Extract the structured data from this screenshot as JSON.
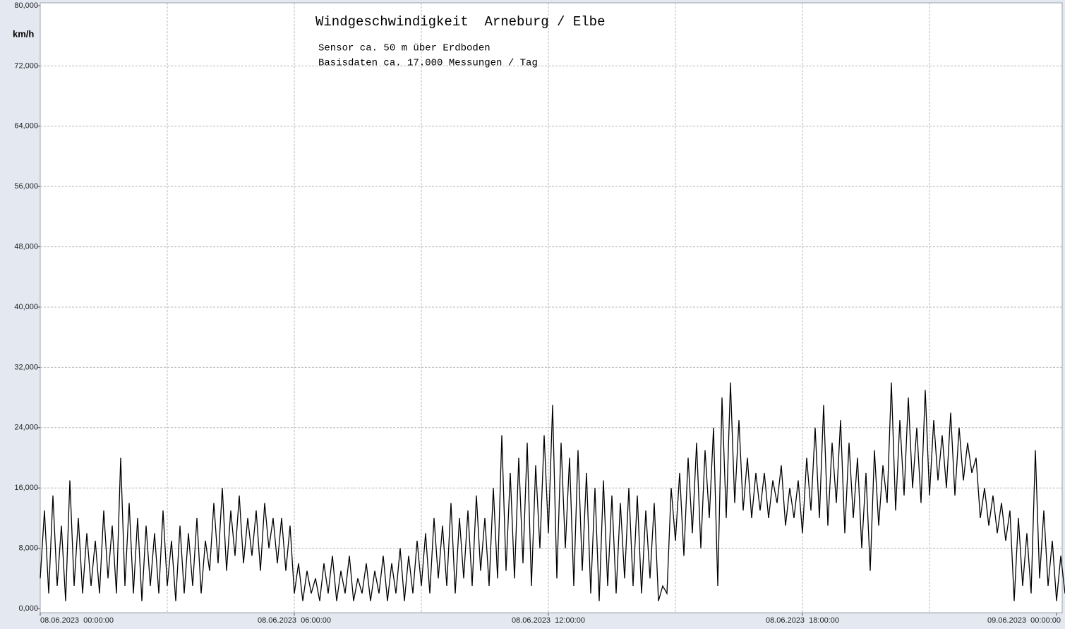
{
  "chart_data": {
    "type": "line",
    "title": "Windgeschwindigkeit  Arneburg / Elbe",
    "subtitles": [
      "Sensor ca. 50 m über Erdboden",
      "Basisdaten ca. 17.000 Messungen / Tag"
    ],
    "y_label": "km/h",
    "color": "#000000",
    "grid": true,
    "ylim": [
      0,
      80
    ],
    "yticks": [
      {
        "value": 0,
        "label": "0,000"
      },
      {
        "value": 8,
        "label": "8,000"
      },
      {
        "value": 16,
        "label": "16,000"
      },
      {
        "value": 24,
        "label": "24,000"
      },
      {
        "value": 32,
        "label": "32,000"
      },
      {
        "value": 40,
        "label": "40,000"
      },
      {
        "value": 48,
        "label": "48,000"
      },
      {
        "value": 56,
        "label": "56,000"
      },
      {
        "value": 64,
        "label": "64,000"
      },
      {
        "value": 72,
        "label": "72,000"
      },
      {
        "value": 80,
        "label": "80,000"
      }
    ],
    "xlim": [
      0,
      24.2
    ],
    "xticks": [
      {
        "value": 0,
        "label": "08.06.2023  00:00:00"
      },
      {
        "value": 6,
        "label": "08.06.2023  06:00:00"
      },
      {
        "value": 12,
        "label": "08.06.2023  12:00:00"
      },
      {
        "value": 18,
        "label": "08.06.2023  18:00:00"
      },
      {
        "value": 24,
        "label": "09.06.2023  00:00:00"
      }
    ],
    "xgrid": [
      3,
      6,
      9,
      12,
      15,
      18,
      21
    ],
    "x": [
      0,
      0.1,
      0.2,
      0.3,
      0.4,
      0.5,
      0.6,
      0.7,
      0.8,
      0.9,
      1,
      1.1,
      1.2,
      1.3,
      1.4,
      1.5,
      1.6,
      1.7,
      1.8,
      1.9,
      2,
      2.1,
      2.2,
      2.3,
      2.4,
      2.5,
      2.6,
      2.7,
      2.8,
      2.9,
      3,
      3.1,
      3.2,
      3.3,
      3.4,
      3.5,
      3.6,
      3.7,
      3.8,
      3.9,
      4,
      4.1,
      4.2,
      4.3,
      4.4,
      4.5,
      4.6,
      4.7,
      4.8,
      4.9,
      5,
      5.1,
      5.2,
      5.3,
      5.4,
      5.5,
      5.6,
      5.7,
      5.8,
      5.9,
      6,
      6.1,
      6.2,
      6.3,
      6.4,
      6.5,
      6.6,
      6.7,
      6.8,
      6.9,
      7,
      7.1,
      7.2,
      7.3,
      7.4,
      7.5,
      7.6,
      7.7,
      7.8,
      7.9,
      8,
      8.1,
      8.2,
      8.3,
      8.4,
      8.5,
      8.6,
      8.7,
      8.8,
      8.9,
      9,
      9.1,
      9.2,
      9.3,
      9.4,
      9.5,
      9.6,
      9.7,
      9.8,
      9.9,
      10,
      10.1,
      10.2,
      10.3,
      10.4,
      10.5,
      10.6,
      10.7,
      10.8,
      10.9,
      11,
      11.1,
      11.2,
      11.3,
      11.4,
      11.5,
      11.6,
      11.7,
      11.8,
      11.9,
      12,
      12.1,
      12.2,
      12.3,
      12.4,
      12.5,
      12.6,
      12.7,
      12.8,
      12.9,
      13,
      13.1,
      13.2,
      13.3,
      13.4,
      13.5,
      13.6,
      13.7,
      13.8,
      13.9,
      14,
      14.1,
      14.2,
      14.3,
      14.4,
      14.5,
      14.6,
      14.7,
      14.8,
      14.9,
      15,
      15.1,
      15.2,
      15.3,
      15.4,
      15.5,
      15.6,
      15.7,
      15.8,
      15.9,
      16,
      16.1,
      16.2,
      16.3,
      16.4,
      16.5,
      16.6,
      16.7,
      16.8,
      16.9,
      17,
      17.1,
      17.2,
      17.3,
      17.4,
      17.5,
      17.6,
      17.7,
      17.8,
      17.9,
      18,
      18.1,
      18.2,
      18.3,
      18.4,
      18.5,
      18.6,
      18.7,
      18.8,
      18.9,
      19,
      19.1,
      19.2,
      19.3,
      19.4,
      19.5,
      19.6,
      19.7,
      19.8,
      19.9,
      20,
      20.1,
      20.2,
      20.3,
      20.4,
      20.5,
      20.6,
      20.7,
      20.8,
      20.9,
      21,
      21.1,
      21.2,
      21.3,
      21.4,
      21.5,
      21.6,
      21.7,
      21.8,
      21.9,
      22,
      22.1,
      22.2,
      22.3,
      22.4,
      22.5,
      22.6,
      22.7,
      22.8,
      22.9,
      23,
      23.1,
      23.2,
      23.3,
      23.4,
      23.5,
      23.6,
      23.7,
      23.8,
      23.9,
      24,
      24.1,
      24.2,
      24.3
    ],
    "values": [
      4,
      13,
      2,
      15,
      3,
      11,
      1,
      17,
      3,
      12,
      2,
      10,
      3,
      9,
      2,
      13,
      4,
      11,
      2,
      20,
      3,
      14,
      2,
      12,
      1,
      11,
      3,
      10,
      2,
      13,
      3,
      9,
      1,
      11,
      2,
      10,
      3,
      12,
      2,
      9,
      5,
      14,
      6,
      16,
      5,
      13,
      7,
      15,
      6,
      12,
      7,
      13,
      5,
      14,
      8,
      12,
      6,
      12,
      5,
      11,
      2,
      6,
      1,
      5,
      2,
      4,
      1,
      6,
      2,
      7,
      1,
      5,
      2,
      7,
      1,
      4,
      2,
      6,
      1,
      5,
      2,
      7,
      1,
      6,
      2,
      8,
      1,
      7,
      2,
      9,
      3,
      10,
      2,
      12,
      4,
      11,
      3,
      14,
      2,
      12,
      4,
      13,
      3,
      15,
      5,
      12,
      3,
      16,
      4,
      23,
      5,
      18,
      4,
      20,
      6,
      22,
      3,
      19,
      8,
      23,
      10,
      27,
      4,
      22,
      8,
      20,
      3,
      21,
      5,
      18,
      2,
      16,
      1,
      17,
      3,
      15,
      2,
      14,
      4,
      16,
      3,
      15,
      2,
      13,
      4,
      14,
      1,
      3,
      2,
      16,
      9,
      18,
      7,
      20,
      10,
      22,
      8,
      21,
      12,
      24,
      3,
      28,
      12,
      30,
      14,
      25,
      13,
      20,
      12,
      18,
      13,
      18,
      12,
      17,
      14,
      19,
      11,
      16,
      12,
      17,
      10,
      20,
      13,
      24,
      12,
      27,
      11,
      22,
      14,
      25,
      10,
      22,
      12,
      20,
      8,
      18,
      5,
      21,
      11,
      19,
      14,
      30,
      13,
      25,
      15,
      28,
      16,
      24,
      14,
      29,
      15,
      25,
      17,
      23,
      16,
      26,
      15,
      24,
      17,
      22,
      18,
      20,
      12,
      16,
      11,
      15,
      10,
      14,
      9,
      13,
      1,
      12,
      3,
      10,
      2,
      21,
      4,
      13,
      3,
      9,
      1,
      7,
      2,
      6
    ]
  }
}
